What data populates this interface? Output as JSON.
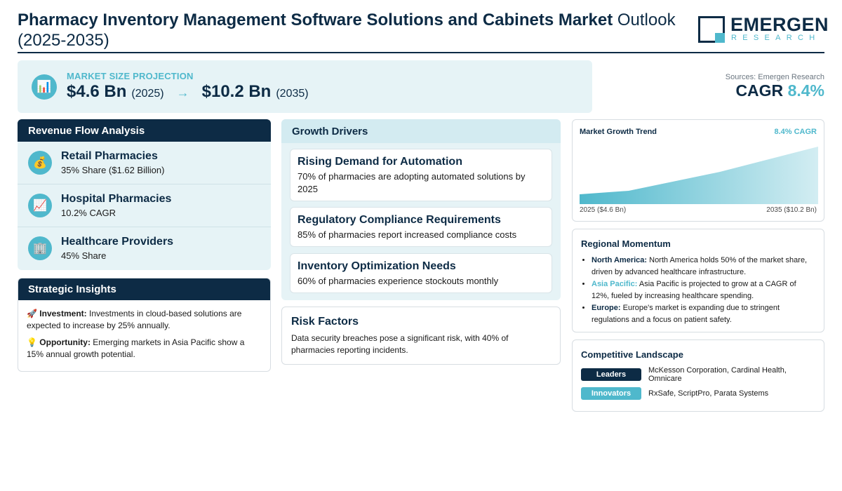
{
  "header": {
    "title_bold": "Pharmacy Inventory Management Software Solutions and Cabinets Market",
    "title_rest": "Outlook (2025-2035)",
    "logo_name": "EMERGEN",
    "logo_sub": "RESEARCH"
  },
  "market": {
    "label": "MARKET SIZE PROJECTION",
    "start_value": "$4.6 Bn",
    "start_year": "(2025)",
    "arrow": "→",
    "end_value": "$10.2 Bn",
    "end_year": "(2035)",
    "icon": "bar-chart-icon"
  },
  "summary": {
    "sources": "Sources: Emergen Research",
    "cagr_label": "CAGR",
    "cagr_value": "8.4%"
  },
  "revenue": {
    "title": "Revenue Flow Analysis",
    "items": [
      {
        "icon": "money-bag-icon",
        "glyph": "💰",
        "title": "Retail Pharmacies",
        "sub": "35% Share ($1.62 Billion)"
      },
      {
        "icon": "trend-up-icon",
        "glyph": "📈",
        "title": "Hospital Pharmacies",
        "sub": "10.2% CAGR"
      },
      {
        "icon": "building-icon",
        "glyph": "🏢",
        "title": "Healthcare Providers",
        "sub": "45% Share"
      }
    ]
  },
  "strategic": {
    "title": "Strategic Insights",
    "investment_icon": "🚀",
    "investment_label": "Investment:",
    "investment_text": " Investments in cloud-based solutions are expected to increase by 25% annually.",
    "opportunity_icon": "💡",
    "opportunity_label": "Opportunity:",
    "opportunity_text": " Emerging markets in Asia Pacific show a 15% annual growth potential."
  },
  "growth": {
    "title": "Growth Drivers",
    "cards": [
      {
        "title": "Rising Demand for Automation",
        "text": "70% of pharmacies are adopting automated solutions by 2025"
      },
      {
        "title": "Regulatory Compliance Requirements",
        "text": "85% of pharmacies report increased compliance costs"
      },
      {
        "title": "Inventory Optimization Needs",
        "text": "60% of pharmacies experience stockouts monthly"
      }
    ]
  },
  "risk": {
    "title": "Risk Factors",
    "text": "Data security breaches pose a significant risk, with 40% of pharmacies reporting incidents."
  },
  "trend": {
    "title": "Market Growth Trend",
    "cagr": "8.4% CAGR",
    "start_label": "2025 ($4.6 Bn)",
    "end_label": "2035 ($10.2 Bn)",
    "fill_color": "#4fb8cc"
  },
  "region": {
    "title": "Regional Momentum",
    "items": [
      {
        "key": "North America:",
        "text": " North America holds 50% of the market share, driven by advanced healthcare infrastructure."
      },
      {
        "key": "Asia Pacific:",
        "text": " Asia Pacific is projected to grow at a CAGR of 12%, fueled by increasing healthcare spending."
      },
      {
        "key": "Europe:",
        "text": " Europe's market is expanding due to stringent regulations and a focus on patient safety."
      }
    ]
  },
  "competitive": {
    "title": "Competitive Landscape",
    "leaders_tag": "Leaders",
    "leaders": "McKesson Corporation, Cardinal Health, Omnicare",
    "innovators_tag": "Innovators",
    "innovators": "RxSafe, ScriptPro, Parata Systems"
  },
  "colors": {
    "navy": "#0d2b45",
    "accent": "#4fb8cc",
    "panel_bg": "#e6f3f6"
  }
}
